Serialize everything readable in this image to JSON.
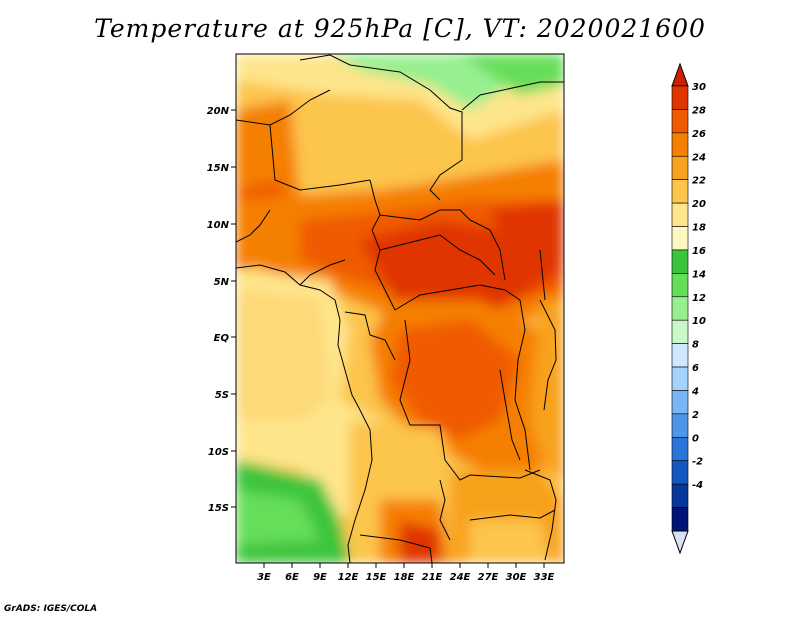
{
  "title": "Temperature at 925hPa [C], VT: 2020021600",
  "footer": "GrADS: IGES/COLA",
  "map": {
    "lat_labels": [
      "20N",
      "15N",
      "10N",
      "5N",
      "EQ",
      "5S",
      "10S",
      "15S"
    ],
    "lon_labels": [
      "3E",
      "6E",
      "9E",
      "12E",
      "15E",
      "18E",
      "21E",
      "24E",
      "27E",
      "30E",
      "33E"
    ]
  },
  "colorbar": {
    "labels": [
      "30",
      "28",
      "26",
      "24",
      "22",
      "20",
      "18",
      "16",
      "14",
      "12",
      "10",
      "8",
      "6",
      "4",
      "2",
      "0",
      "-2",
      "-4"
    ],
    "colors": [
      "#e03500",
      "#f05a00",
      "#f57f00",
      "#f8a21f",
      "#fcc54b",
      "#fee58b",
      "#fff8c2",
      "#3dc43d",
      "#66de5a",
      "#97ef90",
      "#c8f8c6",
      "#cfe8ff",
      "#a4d2fb",
      "#78b6f3",
      "#4d96e8",
      "#2c75d8",
      "#1458bf",
      "#06379b",
      "#001575"
    ],
    "top_arrow_color": "#cc2000",
    "bottom_arrow_color": "#d9dff5"
  }
}
